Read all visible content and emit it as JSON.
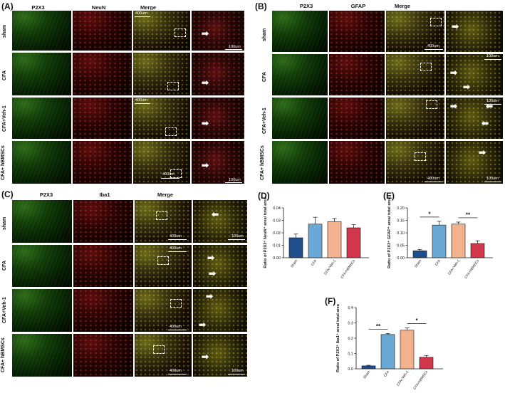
{
  "panels": {
    "A": {
      "label": "(A)",
      "columns": [
        "P2X3",
        "NeuN",
        "Merge"
      ],
      "rows": [
        "sham",
        "CFA",
        "CFA+Veh-1",
        "CFA+ hBMSCs"
      ]
    },
    "B": {
      "label": "(B)",
      "columns": [
        "P2X3",
        "GFAP",
        "Merge"
      ],
      "rows": [
        "sham",
        "CFA",
        "CFA+Veh-1",
        "CFA+ hBMSCs"
      ]
    },
    "C": {
      "label": "(C)",
      "columns": [
        "P2X3",
        "Iba1",
        "Merge"
      ],
      "rows": [
        "sham",
        "CFA",
        "CFA+Veh-1",
        "CFA+ hBMSCs"
      ]
    }
  },
  "scales": {
    "low": "400um",
    "high": "100um"
  },
  "colors": {
    "sham": "#1f4e8c",
    "cfa": "#6aa9d6",
    "veh": "#f3b28f",
    "hbmsc": "#d1364b"
  },
  "chart_data": [
    {
      "label": "(D)",
      "type": "bar",
      "categories": [
        "Sham",
        "CFA",
        "CFA+Veh-1",
        "CFA+hBMSCs"
      ],
      "values": [
        0.016,
        0.027,
        0.029,
        0.024
      ],
      "errors": [
        0.003,
        0.0055,
        0.0025,
        0.0025
      ],
      "ylabel": "Ratio of P2X3⁺ NeuN⁺ area/ total area",
      "yticks": [
        "0.00",
        "0.01",
        "0.02",
        "0.03",
        "0.04"
      ],
      "ylim": [
        0,
        0.04
      ],
      "significance": []
    },
    {
      "label": "(E)",
      "type": "bar",
      "categories": [
        "Sham",
        "CFA",
        "CFA+Veh-1",
        "CFA+hBMSCs"
      ],
      "values": [
        0.028,
        0.131,
        0.135,
        0.057
      ],
      "errors": [
        0.005,
        0.015,
        0.008,
        0.011
      ],
      "ylabel": "Ratio of P2X3⁺ GFAP⁺ area/ total area",
      "yticks": [
        "0.00",
        "0.05",
        "0.10",
        "0.15",
        "0.20"
      ],
      "ylim": [
        0,
        0.2
      ],
      "significance": [
        {
          "from": 0,
          "to": 1,
          "text": "*"
        },
        {
          "from": 2,
          "to": 3,
          "text": "**"
        }
      ]
    },
    {
      "label": "(F)",
      "type": "bar",
      "categories": [
        "Sham",
        "CFA",
        "CFA+Veh-1",
        "CFA+hBMSCs"
      ],
      "values": [
        0.019,
        0.224,
        0.252,
        0.075
      ],
      "errors": [
        0.004,
        0.007,
        0.015,
        0.012
      ],
      "ylabel": "Ratio of P2X3⁺ Iba1⁺ area/ total area",
      "yticks": [
        "0.0",
        "0.1",
        "0.2",
        "0.3",
        "0.4"
      ],
      "ylim": [
        0,
        0.4
      ],
      "significance": [
        {
          "from": 0,
          "to": 1,
          "text": "**"
        },
        {
          "from": 2,
          "to": 3,
          "text": "*"
        }
      ]
    }
  ]
}
